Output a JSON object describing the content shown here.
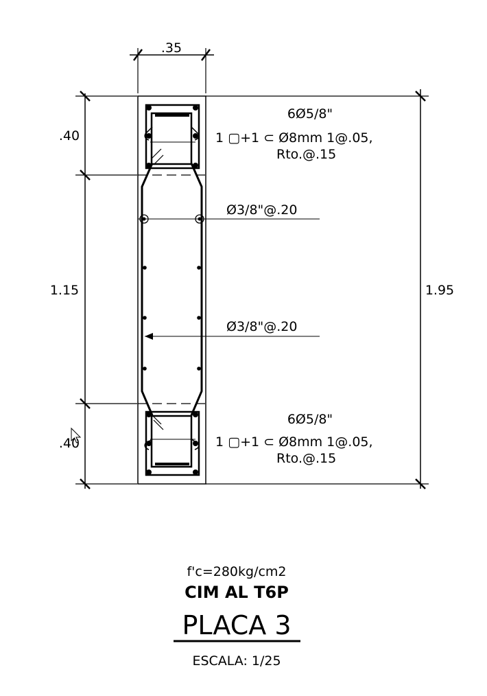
{
  "dimensions": {
    "width_top": ".35",
    "left_top": ".40",
    "left_middle": "1.15",
    "left_bottom": ".40",
    "right_total": "1.95"
  },
  "top_head": {
    "bars": "6Ø5/8\"",
    "stirrups": "1 ▢+1 ⊂ Ø8mm  1@.05,",
    "spacing": "Rto.@.15"
  },
  "bottom_head": {
    "bars": "6Ø5/8\"",
    "stirrups": "1 ▢+1 ⊂ Ø8mm  1@.05,",
    "spacing": "Rto.@.15"
  },
  "web": {
    "horizontal": "Ø3/8\"@.20",
    "vertical": "Ø3/8\"@.20"
  },
  "title_block": {
    "concrete": "f'c=280kg/cm2",
    "level": "CIM AL T6P",
    "title": "PLACA 3",
    "scale": "ESCALA:  1/25"
  }
}
